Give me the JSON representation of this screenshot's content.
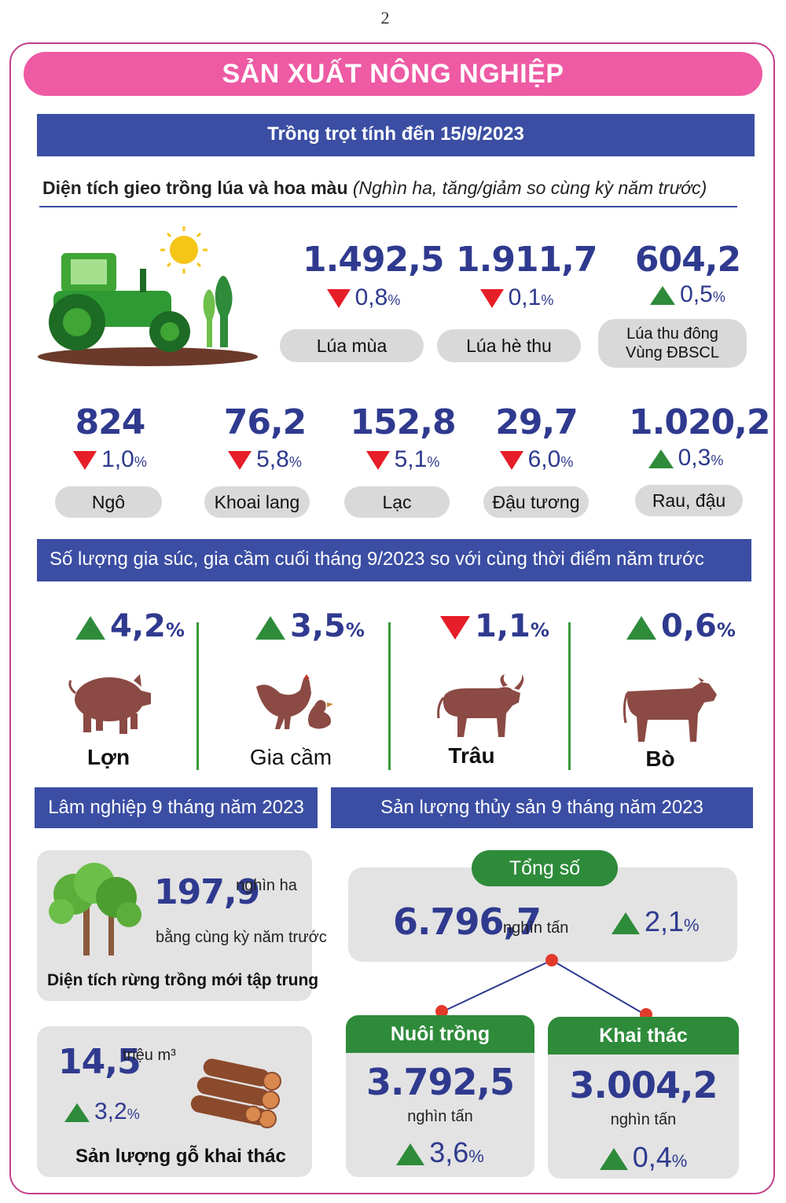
{
  "page_number": "2",
  "title": "SẢN XUẤT NÔNG NGHIỆP",
  "crop": {
    "header": "Trồng trọt tính đến 15/9/2023",
    "subtitle_bold": "Diện tích gieo trồng lúa và hoa màu",
    "subtitle_italic": "(Nghìn ha, tăng/giảm so cùng kỳ năm trước)",
    "row1": [
      {
        "value": "1.492,5",
        "change": "0,8",
        "pct": "%",
        "direction": "down",
        "label": "Lúa mùa"
      },
      {
        "value": "1.911,7",
        "change": "0,1",
        "pct": "%",
        "direction": "down",
        "label": "Lúa hè thu"
      },
      {
        "value": "604,2",
        "change": "0,5",
        "pct": "%",
        "direction": "up",
        "label_line1": "Lúa thu đông",
        "label_line2": "Vùng ĐBSCL"
      }
    ],
    "row2": [
      {
        "value": "824",
        "change": "1,0",
        "pct": "%",
        "direction": "down",
        "label": "Ngô"
      },
      {
        "value": "76,2",
        "change": "5,8",
        "pct": "%",
        "direction": "down",
        "label": "Khoai lang"
      },
      {
        "value": "152,8",
        "change": "5,1",
        "pct": "%",
        "direction": "down",
        "label": "Lạc"
      },
      {
        "value": "29,7",
        "change": "6,0",
        "pct": "%",
        "direction": "down",
        "label": "Đậu tương"
      },
      {
        "value": "1.020,2",
        "change": "0,3",
        "pct": "%",
        "direction": "up",
        "label": "Rau, đậu"
      }
    ]
  },
  "livestock": {
    "header": "Số lượng gia súc, gia cầm cuối tháng 9/2023 so với cùng thời điểm năm trước",
    "items": [
      {
        "change": "4,2",
        "pct": "%",
        "direction": "up",
        "label": "Lợn",
        "icon": "pig-icon"
      },
      {
        "change": "3,5",
        "pct": "%",
        "direction": "up",
        "label": "Gia cầm",
        "icon": "poultry-icon"
      },
      {
        "change": "1,1",
        "pct": "%",
        "direction": "down",
        "label": "Trâu",
        "icon": "buffalo-icon"
      },
      {
        "change": "0,6",
        "pct": "%",
        "direction": "up",
        "label": "Bò",
        "icon": "cow-icon"
      }
    ]
  },
  "forestry": {
    "header": "Lâm nghiệp 9 tháng năm 2023",
    "forest_area": {
      "value": "197,9",
      "unit": "nghìn ha",
      "note": "bằng cùng kỳ năm trước",
      "label": "Diện tích rừng trồng mới tập trung"
    },
    "wood": {
      "value": "14,5",
      "unit": "triệu m³",
      "change": "3,2",
      "pct": "%",
      "direction": "up",
      "label": "Sản lượng gỗ khai thác"
    }
  },
  "fishery": {
    "header": "Sản lượng thủy sản 9 tháng năm 2023",
    "total": {
      "label": "Tổng số",
      "value": "6.796,7",
      "unit": "nghìn tấn",
      "change": "2,1",
      "pct": "%",
      "direction": "up"
    },
    "aquaculture": {
      "label": "Nuôi trồng",
      "value": "3.792,5",
      "unit": "nghìn tấn",
      "change": "3,6",
      "pct": "%",
      "direction": "up"
    },
    "capture": {
      "label": "Khai thác",
      "value": "3.004,2",
      "unit": "nghìn tấn",
      "change": "0,4",
      "pct": "%",
      "direction": "up"
    }
  },
  "colors": {
    "pink": "#ee5aa4",
    "blue": "#3b4ea3",
    "green": "#2e8b3a",
    "red": "#e61e28",
    "number": "#2f3a8f"
  }
}
